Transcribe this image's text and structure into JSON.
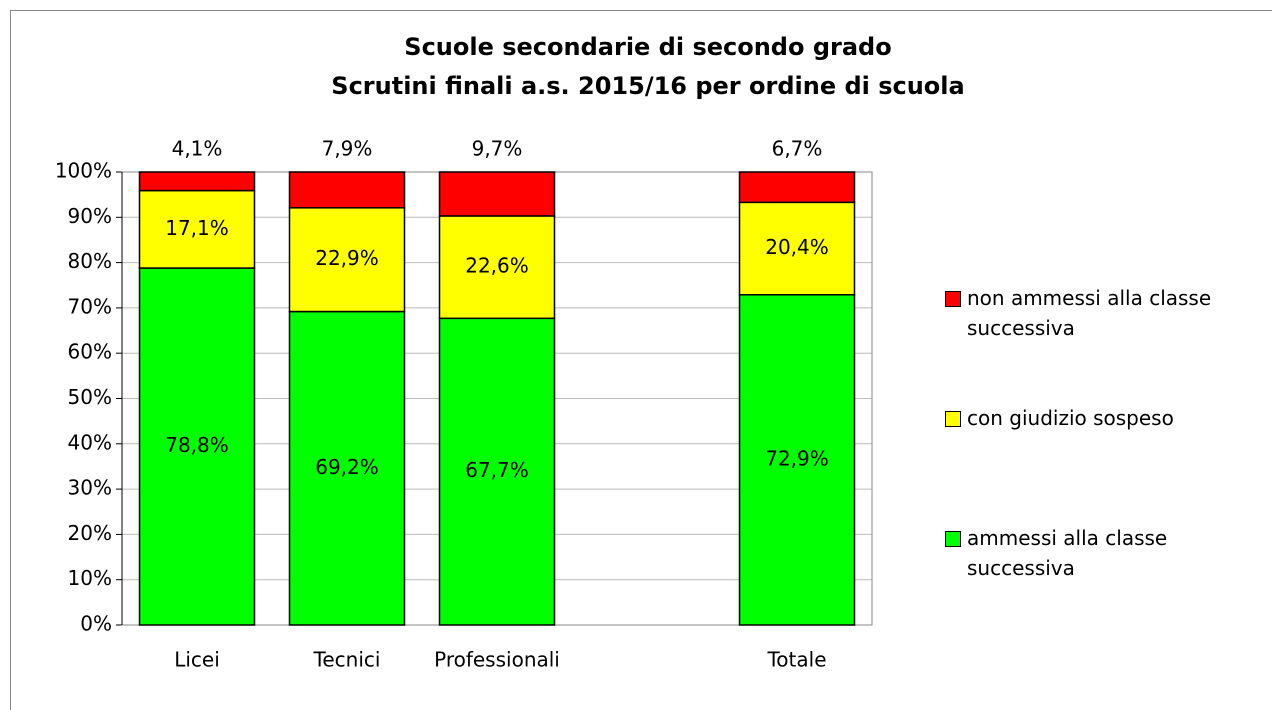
{
  "chart_data": {
    "type": "stacked_bar",
    "title": "Scuole secondarie di secondo grado",
    "subtitle": "Scrutini finali a.s. 2015/16 per ordine di scuola",
    "categories": [
      "Licei",
      "Tecnici",
      "Professionali",
      null,
      "Totale"
    ],
    "series": [
      {
        "name": "ammessi alla classe successiva",
        "color": "#00ff00",
        "values": [
          78.8,
          69.2,
          67.7,
          null,
          72.9
        ],
        "value_labels": [
          "78,8%",
          "69,2%",
          "67,7%",
          null,
          "72,9%"
        ]
      },
      {
        "name": "con giudizio sospeso",
        "color": "#ffff00",
        "values": [
          17.1,
          22.9,
          22.6,
          null,
          20.4
        ],
        "value_labels": [
          "17,1%",
          "22,9%",
          "22,6%",
          null,
          "20,4%"
        ]
      },
      {
        "name": "non ammessi alla classe successiva",
        "color": "#ff0000",
        "values": [
          4.1,
          7.9,
          9.7,
          null,
          6.7
        ],
        "value_labels": [
          "4,1%",
          "7,9%",
          "9,7%",
          null,
          "6,7%"
        ]
      }
    ],
    "ylim": [
      0,
      100
    ],
    "yticks": [
      {
        "value": 0,
        "label": "0%"
      },
      {
        "value": 10,
        "label": "10%"
      },
      {
        "value": 20,
        "label": "20%"
      },
      {
        "value": 30,
        "label": "30%"
      },
      {
        "value": 40,
        "label": "40%"
      },
      {
        "value": 50,
        "label": "50%"
      },
      {
        "value": 60,
        "label": "60%"
      },
      {
        "value": 70,
        "label": "70%"
      },
      {
        "value": 80,
        "label": "80%"
      },
      {
        "value": 90,
        "label": "90%"
      },
      {
        "value": 100,
        "label": "100%"
      }
    ],
    "grid": true,
    "legend": "right"
  }
}
